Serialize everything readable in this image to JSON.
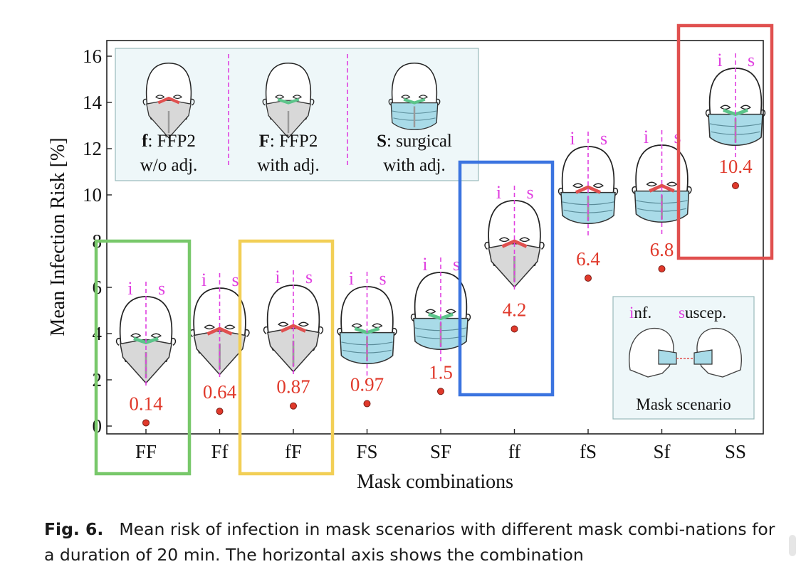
{
  "chart_data": {
    "type": "scatter",
    "title": "",
    "xlabel": "Mask combinations",
    "ylabel": "Mean Infection Risk  [%]",
    "categories": [
      "FF",
      "Ff",
      "fF",
      "FS",
      "SF",
      "ff",
      "fS",
      "Sf",
      "SS"
    ],
    "values": [
      0.14,
      0.64,
      0.87,
      0.97,
      1.5,
      4.2,
      6.4,
      6.8,
      10.4
    ],
    "data_labels": [
      "0.14",
      "0.64",
      "0.87",
      "0.97",
      "1.5",
      "4.2",
      "6.4",
      "6.8",
      "10.4"
    ],
    "ylim": [
      0,
      16.5
    ],
    "yticks": [
      "0",
      "2",
      "4",
      "6",
      "8",
      "10",
      "12",
      "14",
      "16"
    ],
    "grid": false,
    "marker_color": "#e0392b",
    "label_color": "#e0392b",
    "pair_label_color": "#e040e0",
    "pair_labels": {
      "infected": "i",
      "susceptible": "s"
    },
    "highlight_boxes": [
      {
        "category": "FF",
        "color": "#78c86a"
      },
      {
        "category": "fF",
        "color": "#f2cf56"
      },
      {
        "category": "ff",
        "color": "#3b74e0"
      },
      {
        "category": "SS",
        "color": "#e0504f"
      }
    ],
    "legend": {
      "placement": "top-left",
      "entries": [
        {
          "code": "f",
          "text": ": FFP2",
          "line2": "w/o adj.",
          "mask": "ffp2",
          "nose_clip": "red"
        },
        {
          "code": "F",
          "text": ": FFP2",
          "line2": "with adj.",
          "mask": "ffp2",
          "nose_clip": "green"
        },
        {
          "code": "S",
          "text": ": surgical",
          "line2": "with adj.",
          "mask": "surgical",
          "nose_clip": "green"
        }
      ]
    },
    "inset": {
      "placement": "bottom-right",
      "label_inf_first": "i",
      "label_inf_rest": "nf.",
      "label_sus_first": "s",
      "label_sus_rest": "uscep.",
      "title": "Mask scenario"
    }
  },
  "caption": {
    "label": "Fig. 6.",
    "text": "Mean risk of infection in mask scenarios with different mask combi-nations for a duration of 20 min. The horizontal axis shows the combination"
  },
  "colors": {
    "surgical_mask": "#a9dbe8",
    "ffp2_mask": "#d8d8d8",
    "legend_bg": "#eef7f9",
    "nose_green": "#5cc48a",
    "nose_red": "#e0504f"
  }
}
